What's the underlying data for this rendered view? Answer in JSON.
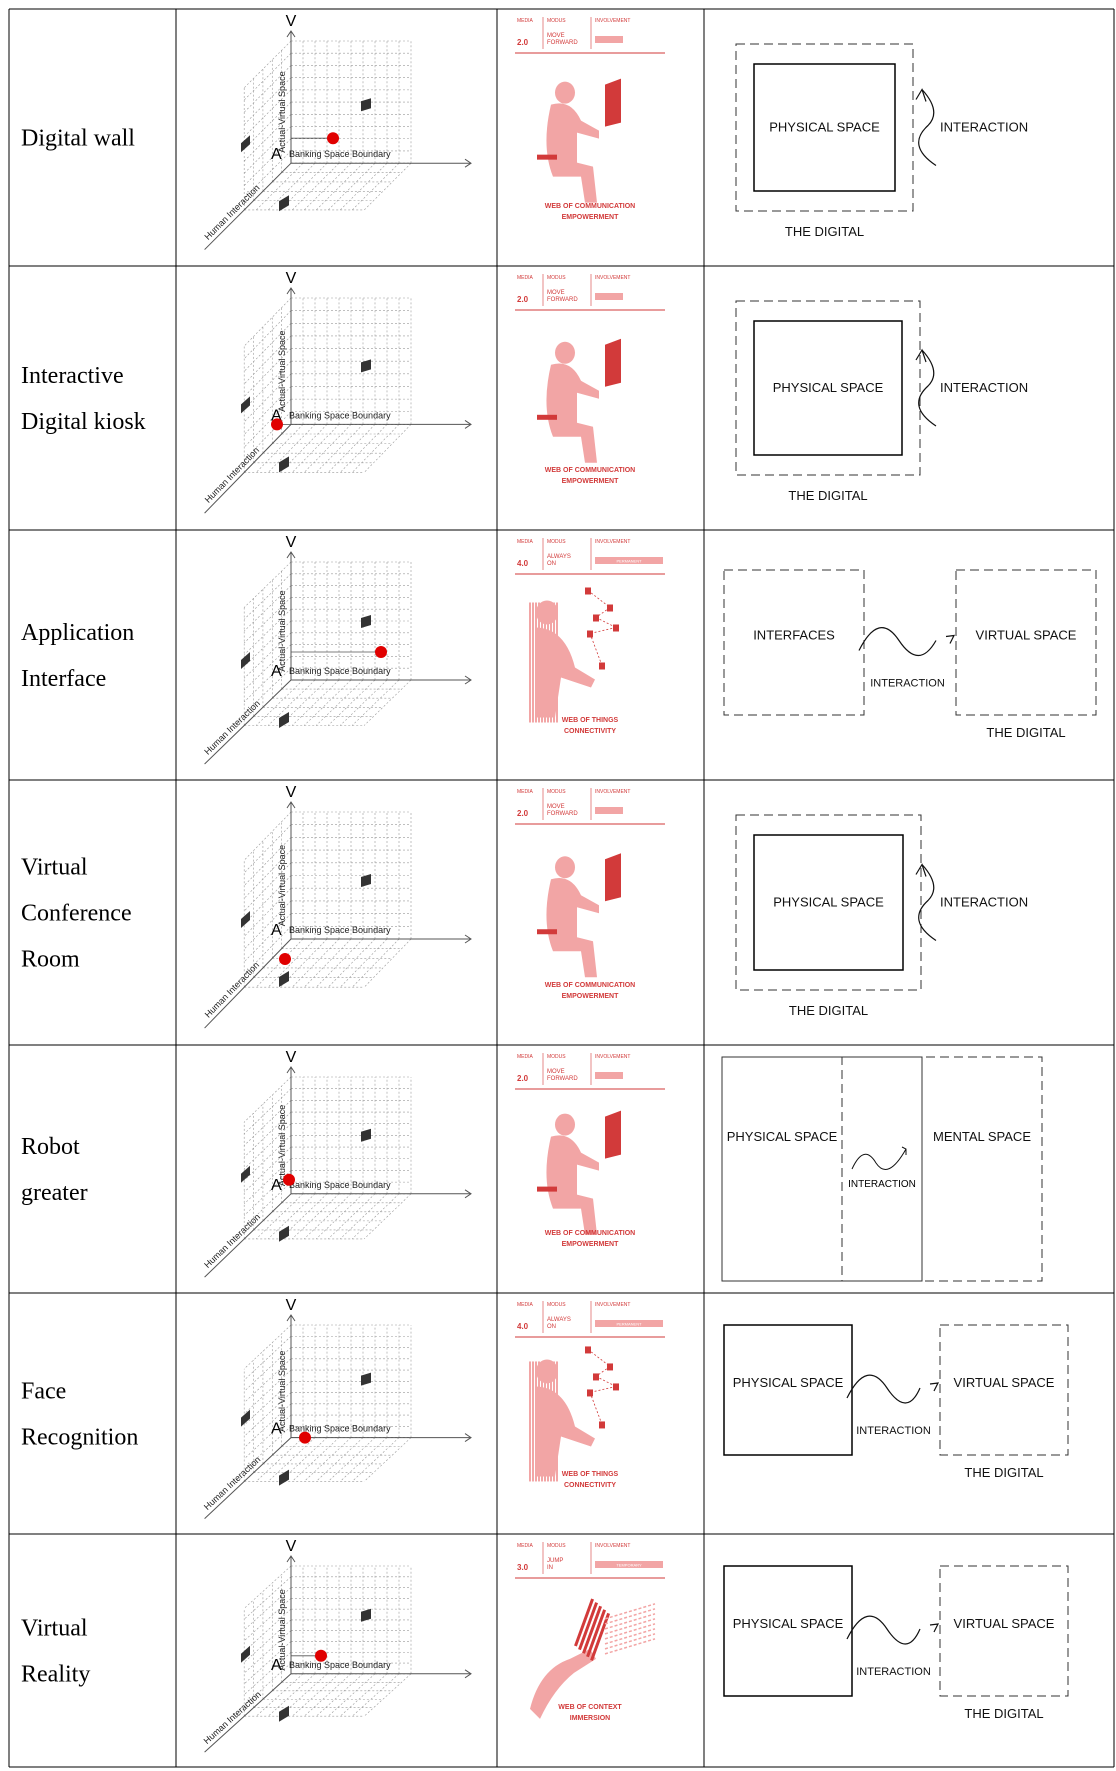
{
  "rows": [
    {
      "name": [
        "Digital wall"
      ],
      "axes": {
        "v": "V",
        "a": "A",
        "vertical": "Actual-Virtual Space",
        "boundary": "Banking Space Boundary",
        "horizontal": "Human Interaction"
      },
      "poster": {
        "media_label": "MEDIA",
        "modus_label": "MODUS",
        "involvement_label": "INVOLVEMENT",
        "media": "2.0",
        "modus": [
          "MOVE",
          "FORWARD"
        ],
        "caption": [
          "WEB OF COMMUNICATION",
          "EMPOWERMENT"
        ]
      },
      "concept": {
        "kind": "nested",
        "physical": "PHYSICAL SPACE",
        "interaction": "INTERACTION",
        "digital": "THE DIGITAL"
      }
    },
    {
      "name": [
        "Interactive",
        "Digital kiosk"
      ],
      "axes": {
        "v": "V",
        "a": "A",
        "vertical": "Actual-Virtual Space",
        "boundary": "Banking Space Boundary",
        "horizontal": "Human Interaction"
      },
      "poster": {
        "media_label": "MEDIA",
        "modus_label": "MODUS",
        "involvement_label": "INVOLVEMENT",
        "media": "2.0",
        "modus": [
          "MOVE",
          "FORWARD"
        ],
        "caption": [
          "WEB OF COMMUNICATION",
          "EMPOWERMENT"
        ]
      },
      "concept": {
        "kind": "nested",
        "physical": "PHYSICAL SPACE",
        "interaction": "INTERACTION",
        "digital": "THE DIGITAL"
      }
    },
    {
      "name": [
        "Application",
        "Interface"
      ],
      "axes": {
        "v": "V",
        "a": "A",
        "vertical": "Actual-Virtual Space",
        "boundary": "Banking Space Boundary",
        "horizontal": "Human Interaction"
      },
      "poster": {
        "media_label": "MEDIA",
        "modus_label": "MODUS",
        "involvement_label": "INVOLVEMENT",
        "media": "4.0",
        "modus": [
          "ALWAYS",
          "ON"
        ],
        "involvement": "PERMANENT",
        "caption": [
          "WEB OF THINGS",
          "CONNECTIVITY"
        ]
      },
      "concept": {
        "kind": "flow",
        "left_style": "dashed",
        "left": "INTERFACES",
        "right": "VIRTUAL SPACE",
        "interaction": "INTERACTION",
        "digital": "THE DIGITAL"
      }
    },
    {
      "name": [
        "Virtual",
        "Conference",
        "Room"
      ],
      "axes": {
        "v": "V",
        "a": "A",
        "vertical": "Actual-Virtual Space",
        "boundary": "Banking Space Boundary",
        "horizontal": "Human Interaction"
      },
      "poster": {
        "media_label": "MEDIA",
        "modus_label": "MODUS",
        "involvement_label": "INVOLVEMENT",
        "media": "2.0",
        "modus": [
          "MOVE",
          "FORWARD"
        ],
        "caption": [
          "WEB OF COMMUNICATION",
          "EMPOWERMENT"
        ]
      },
      "concept": {
        "kind": "nested",
        "physical": "PHYSICAL SPACE",
        "interaction": "INTERACTION",
        "digital": "THE DIGITAL"
      }
    },
    {
      "name": [
        "Robot",
        "greater"
      ],
      "axes": {
        "v": "V",
        "a": "A",
        "vertical": "Actual-Virtual Space",
        "boundary": "Banking Space Boundary",
        "horizontal": "Human Interaction"
      },
      "poster": {
        "media_label": "MEDIA",
        "modus_label": "MODUS",
        "involvement_label": "INVOLVEMENT",
        "media": "2.0",
        "modus": [
          "MOVE",
          "FORWARD"
        ],
        "caption": [
          "WEB OF COMMUNICATION",
          "EMPOWERMENT"
        ]
      },
      "concept": {
        "kind": "split",
        "left": "PHYSICAL SPACE",
        "interaction": "INTERACTION",
        "right": "MENTAL SPACE"
      }
    },
    {
      "name": [
        "Face",
        "Recognition"
      ],
      "axes": {
        "v": "V",
        "a": "A",
        "vertical": "Actual-Virtual Space",
        "boundary": "Banking Space Boundary",
        "horizontal": "Human Interaction"
      },
      "poster": {
        "media_label": "MEDIA",
        "modus_label": "MODUS",
        "involvement_label": "INVOLVEMENT",
        "media": "4.0",
        "modus": [
          "ALWAYS",
          "ON"
        ],
        "involvement": "PERMANENT",
        "caption": [
          "WEB OF THINGS",
          "CONNECTIVITY"
        ]
      },
      "concept": {
        "kind": "flow",
        "left_style": "solid",
        "left": "PHYSICAL SPACE",
        "right": "VIRTUAL SPACE",
        "interaction": "INTERACTION",
        "digital": "THE DIGITAL"
      }
    },
    {
      "name": [
        "Virtual",
        "Reality"
      ],
      "axes": {
        "v": "V",
        "a": "A",
        "vertical": "Actual-Virtual Space",
        "boundary": "Banking Space Boundary",
        "horizontal": "Human Interaction"
      },
      "poster": {
        "media_label": "MEDIA",
        "modus_label": "MODUS",
        "involvement_label": "INVOLVEMENT",
        "media": "3.0",
        "modus": [
          "JUMP",
          "IN"
        ],
        "involvement": "TEMPORARY",
        "caption": [
          "WEB OF CONTEXT",
          "IMMERSION"
        ]
      },
      "concept": {
        "kind": "flow",
        "left_style": "solid",
        "left": "PHYSICAL SPACE",
        "right": "VIRTUAL SPACE",
        "interaction": "INTERACTION",
        "digital": "THE DIGITAL"
      }
    }
  ]
}
